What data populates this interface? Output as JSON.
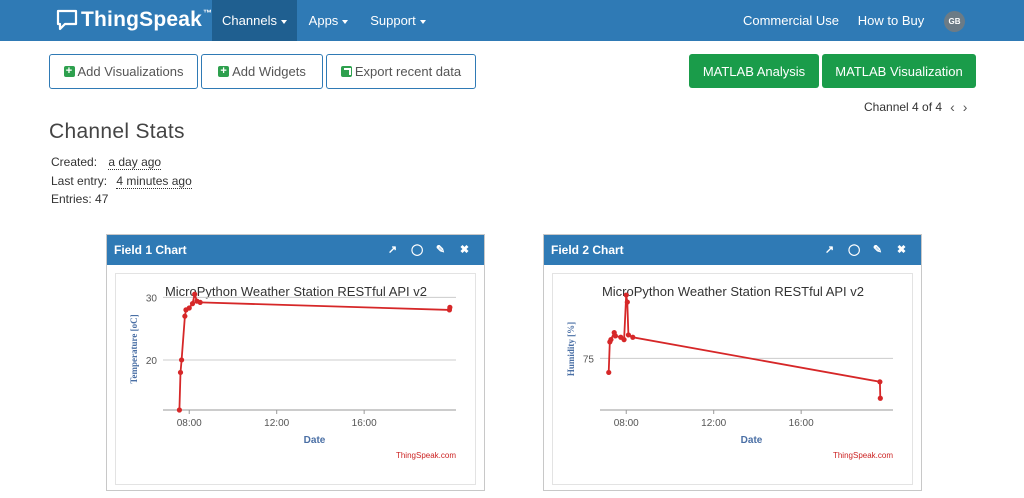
{
  "navbar": {
    "brand": "ThingSpeak",
    "brand_tm": "™",
    "items": [
      {
        "label": "Channels",
        "dropdown": true,
        "active": true
      },
      {
        "label": "Apps",
        "dropdown": true,
        "active": false
      },
      {
        "label": "Support",
        "dropdown": true,
        "active": false
      },
      {
        "label": "Commercial Use",
        "dropdown": false,
        "active": false
      },
      {
        "label": "How to Buy",
        "dropdown": false,
        "active": false
      }
    ],
    "avatar_initials": "GB"
  },
  "toolbar": {
    "add_visualizations": "Add Visualizations",
    "add_widgets": "Add Widgets",
    "export_recent_data": "Export recent data",
    "matlab_analysis": "MATLAB Analysis",
    "matlab_visualization": "MATLAB Visualization"
  },
  "channel_nav": {
    "label": "Channel 4 of 4",
    "prev": "‹",
    "next": "›"
  },
  "stats": {
    "title": "Channel Stats",
    "created_label": "Created:",
    "created_value": "a day ago",
    "last_entry_label": "Last entry:",
    "last_entry_value": "4 minutes ago",
    "entries": "Entries: 47"
  },
  "panels": [
    {
      "title": "Field 1 Chart"
    },
    {
      "title": "Field 2 Chart"
    }
  ],
  "colors": {
    "nav": "#2f7ab5",
    "nav_active": "#1f5f90",
    "green": "#1a9c4a",
    "series": "#d62728",
    "axis_label": "#4a6fa5"
  },
  "chart_data": [
    {
      "type": "line",
      "title": "MicroPython Weather Station RESTful API v2",
      "xlabel": "Date",
      "ylabel": "Temperature [oC]",
      "xticks": [
        "08:00",
        "12:00",
        "16:00"
      ],
      "yticks": [
        20,
        30
      ],
      "ylim": [
        12,
        31.5
      ],
      "credit": "ThingSpeak.com",
      "points": [
        {
          "x": 7.55,
          "y": 12.0
        },
        {
          "x": 7.6,
          "y": 18.0
        },
        {
          "x": 7.65,
          "y": 20.0
        },
        {
          "x": 7.8,
          "y": 27.0
        },
        {
          "x": 7.85,
          "y": 28.0
        },
        {
          "x": 8.0,
          "y": 28.3
        },
        {
          "x": 8.15,
          "y": 29.0
        },
        {
          "x": 8.25,
          "y": 30.5
        },
        {
          "x": 8.35,
          "y": 29.4
        },
        {
          "x": 8.5,
          "y": 29.2
        },
        {
          "x": 19.9,
          "y": 28.0
        },
        {
          "x": 19.92,
          "y": 28.4
        }
      ]
    },
    {
      "type": "line",
      "title": "MicroPython Weather Station RESTful API v2",
      "xlabel": "Date",
      "ylabel": "Humidity [%]",
      "xticks": [
        "08:00",
        "12:00",
        "16:00"
      ],
      "yticks": [
        75
      ],
      "ylim": [
        64,
        90
      ],
      "credit": "ThingSpeak.com",
      "points": [
        {
          "x": 7.2,
          "y": 72.0
        },
        {
          "x": 7.25,
          "y": 78.5
        },
        {
          "x": 7.3,
          "y": 79.0
        },
        {
          "x": 7.45,
          "y": 80.5
        },
        {
          "x": 7.5,
          "y": 79.8
        },
        {
          "x": 7.75,
          "y": 79.5
        },
        {
          "x": 7.9,
          "y": 79.0
        },
        {
          "x": 8.0,
          "y": 88.5
        },
        {
          "x": 8.05,
          "y": 87.0
        },
        {
          "x": 8.1,
          "y": 80.0
        },
        {
          "x": 8.3,
          "y": 79.5
        },
        {
          "x": 19.6,
          "y": 70.0
        },
        {
          "x": 19.62,
          "y": 66.5
        }
      ]
    }
  ]
}
